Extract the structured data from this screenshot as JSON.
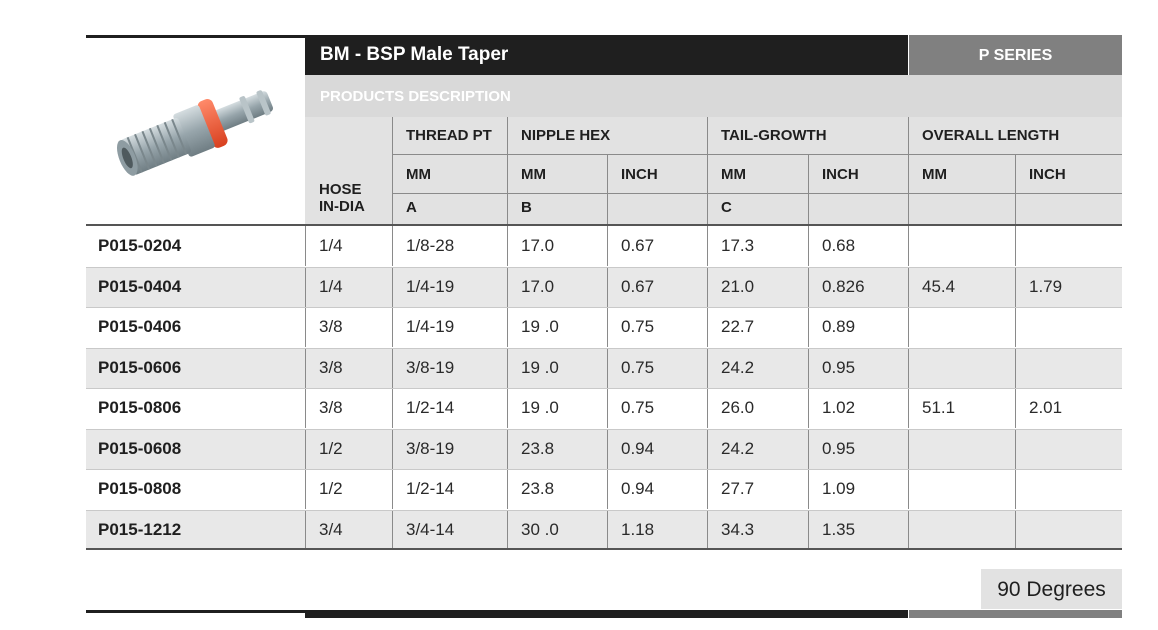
{
  "header": {
    "title": "BM - BSP Male Taper",
    "series": "P SERIES",
    "products_description": "PRODUCTS DESCRIPTION"
  },
  "columns": {
    "hose_line1": "HOSE",
    "hose_line2": "IN-DIA",
    "thread": "THREAD PT",
    "nipple_hex": "NIPPLE HEX",
    "tail_growth": "TAIL-GROWTH",
    "overall_length": "OVERALL LENGTH",
    "mm": "MM",
    "inch": "INCH",
    "ref_a": "A",
    "ref_b": "B",
    "ref_c": "C"
  },
  "rows": [
    {
      "part": "P015-0204",
      "hose": "1/4",
      "thread": "1/8-28",
      "hex_mm": "17.0",
      "hex_in": "0.67",
      "tail_mm": "17.3",
      "tail_in": "0.68",
      "len_mm": "",
      "len_in": ""
    },
    {
      "part": "P015-0404",
      "hose": "1/4",
      "thread": "1/4-19",
      "hex_mm": "17.0",
      "hex_in": "0.67",
      "tail_mm": "21.0",
      "tail_in": "0.826",
      "len_mm": "45.4",
      "len_in": "1.79"
    },
    {
      "part": "P015-0406",
      "hose": "3/8",
      "thread": "1/4-19",
      "hex_mm": "19 .0",
      "hex_in": "0.75",
      "tail_mm": "22.7",
      "tail_in": "0.89",
      "len_mm": "",
      "len_in": ""
    },
    {
      "part": "P015-0606",
      "hose": "3/8",
      "thread": "3/8-19",
      "hex_mm": "19 .0",
      "hex_in": "0.75",
      "tail_mm": "24.2",
      "tail_in": "0.95",
      "len_mm": "",
      "len_in": ""
    },
    {
      "part": "P015-0806",
      "hose": "3/8",
      "thread": "1/2-14",
      "hex_mm": "19 .0",
      "hex_in": "0.75",
      "tail_mm": "26.0",
      "tail_in": "1.02",
      "len_mm": "51.1",
      "len_in": "2.01"
    },
    {
      "part": "P015-0608",
      "hose": "1/2",
      "thread": "3/8-19",
      "hex_mm": "23.8",
      "hex_in": "0.94",
      "tail_mm": "24.2",
      "tail_in": "0.95",
      "len_mm": "",
      "len_in": ""
    },
    {
      "part": "P015-0808",
      "hose": "1/2",
      "thread": "1/2-14",
      "hex_mm": "23.8",
      "hex_in": "0.94",
      "tail_mm": "27.7",
      "tail_in": "1.09",
      "len_mm": "",
      "len_in": ""
    },
    {
      "part": "P015-1212",
      "hose": "3/4",
      "thread": "3/4-14",
      "hex_mm": "30 .0",
      "hex_in": "1.18",
      "tail_mm": "34.3",
      "tail_in": "1.35",
      "len_mm": "",
      "len_in": ""
    }
  ],
  "footer": {
    "angle_label": "90 Degrees"
  },
  "product_image": {
    "icon": "hose-fitting-icon",
    "colors": {
      "metal": "#9aa7ad",
      "ring": "#ef5a3c"
    }
  }
}
